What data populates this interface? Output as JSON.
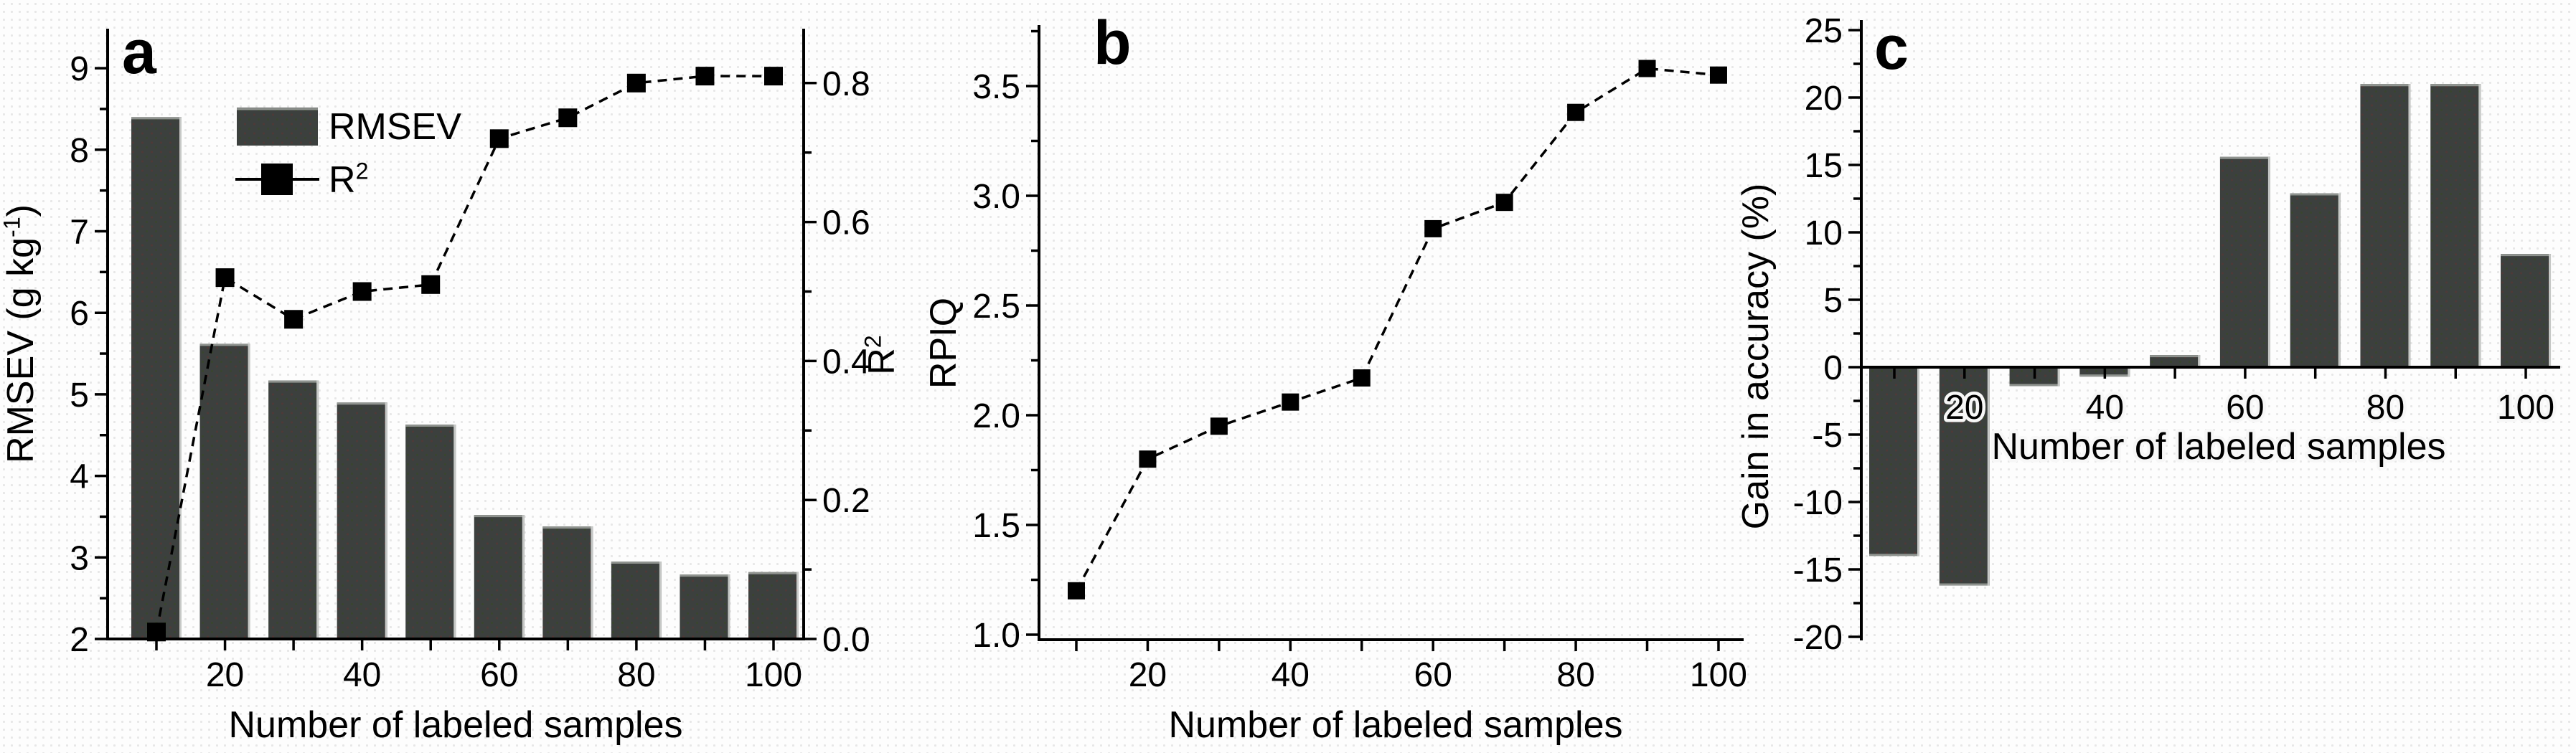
{
  "figure": {
    "background_color": "#fdfdfd",
    "dot_pattern_color": "#e7e7e7",
    "bar_color": "#3c403e",
    "bar_edge_highlight": "#8f938f",
    "bar_right_highlight": "#c6c8c6",
    "line_color": "#000000",
    "axis_color": "#000000",
    "text_color": "#000000"
  },
  "chart_data": [
    {
      "panel_label": "a",
      "type": "bar+line",
      "x": [
        10,
        20,
        30,
        40,
        50,
        60,
        70,
        80,
        90,
        100
      ],
      "x_tick_labels": [
        {
          "v": 20,
          "label": "20"
        },
        {
          "v": 40,
          "label": "40"
        },
        {
          "v": 60,
          "label": "60"
        },
        {
          "v": 80,
          "label": "80"
        },
        {
          "v": 100,
          "label": "100"
        }
      ],
      "xlabel": "Number of labeled samples",
      "bar_series": {
        "name": "RMSEV",
        "values": [
          8.4,
          5.62,
          5.17,
          4.9,
          4.63,
          3.52,
          3.38,
          2.95,
          2.79,
          2.82
        ]
      },
      "line_series": {
        "name": "R²",
        "values": [
          0.01,
          0.52,
          0.46,
          0.5,
          0.51,
          0.72,
          0.75,
          0.8,
          0.81,
          0.81
        ]
      },
      "left_axis": {
        "label": "RMSEV (g kg⁻¹)",
        "ylim": [
          2,
          9.5
        ],
        "ticks": [
          {
            "v": 2,
            "label": "2"
          },
          {
            "v": 3,
            "label": "3"
          },
          {
            "v": 4,
            "label": "4"
          },
          {
            "v": 5,
            "label": "5"
          },
          {
            "v": 6,
            "label": "6"
          },
          {
            "v": 7,
            "label": "7"
          },
          {
            "v": 8,
            "label": "8"
          },
          {
            "v": 9,
            "label": "9"
          }
        ],
        "minor_step": 0.5
      },
      "right_axis": {
        "label": "R²",
        "ylim": [
          0,
          0.88
        ],
        "ticks": [
          {
            "v": 0.0,
            "label": "0.0"
          },
          {
            "v": 0.2,
            "label": "0.2"
          },
          {
            "v": 0.4,
            "label": "0.4"
          },
          {
            "v": 0.6,
            "label": "0.6"
          },
          {
            "v": 0.8,
            "label": "0.8"
          }
        ],
        "minor_step": 0.1
      },
      "legend": [
        {
          "marker": "bar-swatch",
          "label": "RMSEV"
        },
        {
          "marker": "line-square",
          "label": "R²"
        }
      ],
      "grid": false,
      "legend_position": "upper-left-inside"
    },
    {
      "panel_label": "b",
      "type": "line",
      "x": [
        10,
        20,
        30,
        40,
        50,
        60,
        70,
        80,
        90,
        100
      ],
      "values": [
        1.2,
        1.8,
        1.95,
        2.06,
        2.17,
        2.85,
        2.97,
        3.38,
        3.58,
        3.55
      ],
      "x_tick_labels": [
        {
          "v": 20,
          "label": "20"
        },
        {
          "v": 40,
          "label": "40"
        },
        {
          "v": 60,
          "label": "60"
        },
        {
          "v": 80,
          "label": "80"
        },
        {
          "v": 100,
          "label": "100"
        }
      ],
      "xlabel": "Number of labeled samples",
      "ylabel": "RPIQ",
      "ylim": [
        1.0,
        3.78
      ],
      "yticks": [
        {
          "v": 1.0,
          "label": "1.0"
        },
        {
          "v": 1.5,
          "label": "1.5"
        },
        {
          "v": 2.0,
          "label": "2.0"
        },
        {
          "v": 2.5,
          "label": "2.5"
        },
        {
          "v": 3.0,
          "label": "3.0"
        },
        {
          "v": 3.5,
          "label": "3.5"
        }
      ],
      "minor_step": 0.25,
      "grid": false
    },
    {
      "panel_label": "c",
      "type": "bar",
      "x": [
        10,
        20,
        30,
        40,
        50,
        60,
        70,
        80,
        90,
        100
      ],
      "values": [
        -14.0,
        -16.2,
        -1.4,
        -0.7,
        0.9,
        15.6,
        12.9,
        21.0,
        21.0,
        8.4
      ],
      "x_tick_labels": [
        {
          "v": 20,
          "label": "20"
        },
        {
          "v": 40,
          "label": "40"
        },
        {
          "v": 60,
          "label": "60"
        },
        {
          "v": 80,
          "label": "80"
        },
        {
          "v": 100,
          "label": "100"
        }
      ],
      "xlabel": "Number of labeled samples",
      "ylabel": "Gain in accuracy (%)",
      "ylim": [
        -20,
        25
      ],
      "yticks": [
        {
          "v": -20,
          "label": "-20"
        },
        {
          "v": -15,
          "label": "-15"
        },
        {
          "v": -10,
          "label": "-10"
        },
        {
          "v": -5,
          "label": "-5"
        },
        {
          "v": 0,
          "label": "0"
        },
        {
          "v": 5,
          "label": "5"
        },
        {
          "v": 10,
          "label": "10"
        },
        {
          "v": 15,
          "label": "15"
        },
        {
          "v": 20,
          "label": "20"
        },
        {
          "v": 25,
          "label": "25"
        }
      ],
      "minor_step": 2.5,
      "grid": false
    }
  ]
}
